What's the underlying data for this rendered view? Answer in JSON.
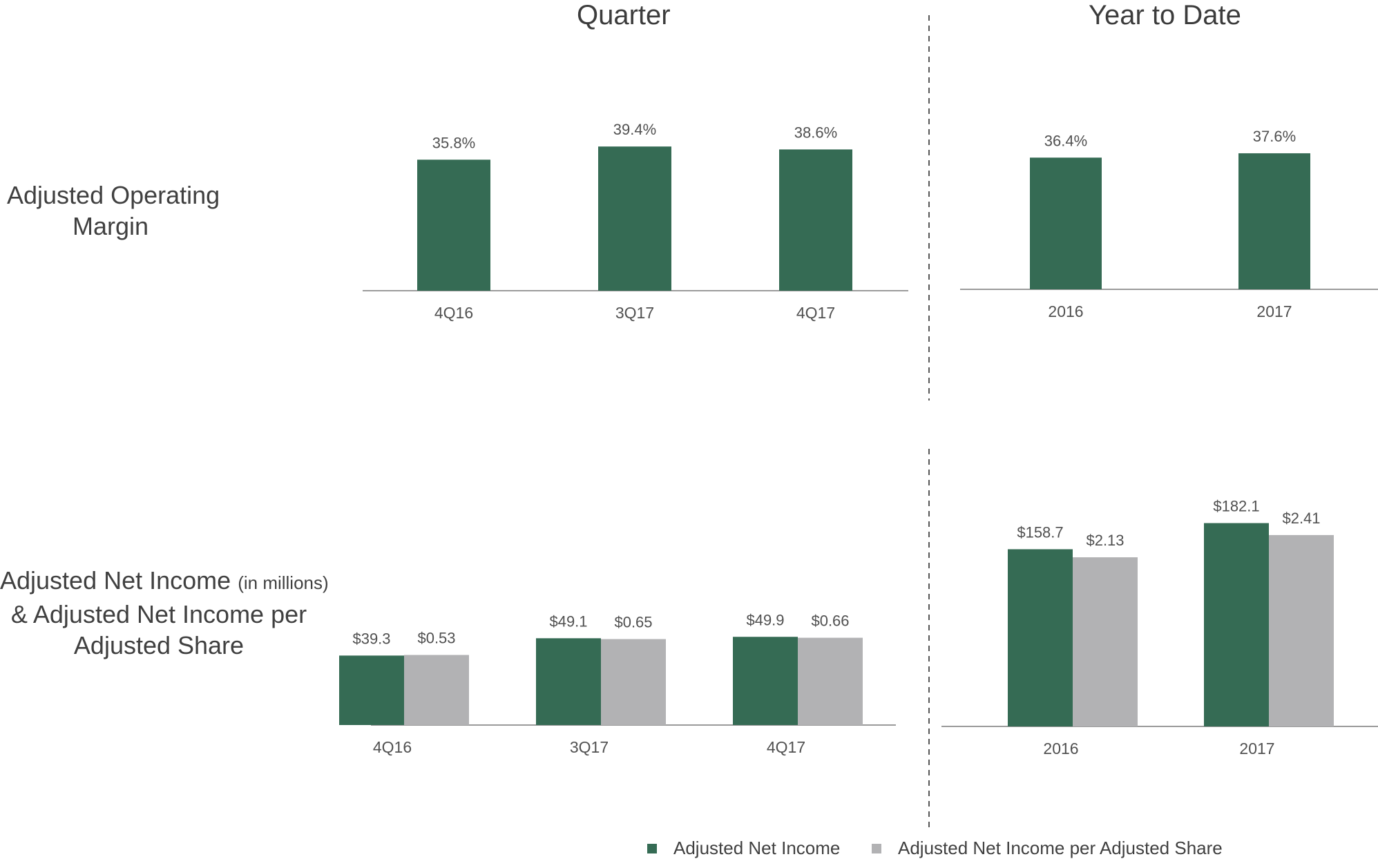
{
  "headings": {
    "quarter": "Quarter",
    "ytd": "Year to Date"
  },
  "row_labels": {
    "margin": [
      "Adjusted Operating",
      "Margin"
    ],
    "net_income_line1": "Adjusted Net Income",
    "net_income_suffix": "(in millions)",
    "net_income_line2": "& Adjusted Net Income per",
    "net_income_line3": "Adjusted Share"
  },
  "legend": {
    "items": [
      {
        "label": "Adjusted Net Income",
        "color": "#356b54"
      },
      {
        "label": "Adjusted Net Income per Adjusted Share",
        "color": "#b2b2b4"
      }
    ]
  },
  "colors": {
    "green": "#356b54",
    "gray": "#b2b2b4",
    "axis": "#9a9a9a",
    "divider": "#555555"
  },
  "chart_data": [
    {
      "type": "bar",
      "title": "Adjusted Operating Margin — Quarter",
      "categories": [
        "4Q16",
        "3Q17",
        "4Q17"
      ],
      "series": [
        {
          "values": [
            35.8,
            39.4,
            38.6
          ],
          "labels": [
            "35.8%",
            "39.4%",
            "38.6%"
          ]
        }
      ]
    },
    {
      "type": "bar",
      "title": "Adjusted Operating Margin — Year to Date",
      "categories": [
        "2016",
        "2017"
      ],
      "series": [
        {
          "values": [
            36.4,
            37.6
          ],
          "labels": [
            "36.4%",
            "37.6%"
          ]
        }
      ]
    },
    {
      "type": "bar",
      "title": "Adjusted Net Income & Adjusted Net Income per Adjusted Share — Quarter",
      "categories": [
        "4Q16",
        "3Q17",
        "4Q17"
      ],
      "series": [
        {
          "name": "Adjusted Net Income",
          "values": [
            39.3,
            49.1,
            49.9
          ],
          "labels": [
            "$39.3",
            "$49.1",
            "$49.9"
          ]
        },
        {
          "name": "Adjusted Net Income per Adjusted Share",
          "values": [
            0.53,
            0.65,
            0.66
          ],
          "labels": [
            "$0.53",
            "$0.65",
            "$0.66"
          ]
        }
      ]
    },
    {
      "type": "bar",
      "title": "Adjusted Net Income & Adjusted Net Income per Adjusted Share — Year to Date",
      "categories": [
        "2016",
        "2017"
      ],
      "series": [
        {
          "name": "Adjusted Net Income",
          "values": [
            158.7,
            182.1
          ],
          "labels": [
            "$158.7",
            "$182.1"
          ]
        },
        {
          "name": "Adjusted Net Income per Adjusted Share",
          "values": [
            2.13,
            2.41
          ],
          "labels": [
            "$2.13",
            "$2.41"
          ]
        }
      ]
    }
  ]
}
